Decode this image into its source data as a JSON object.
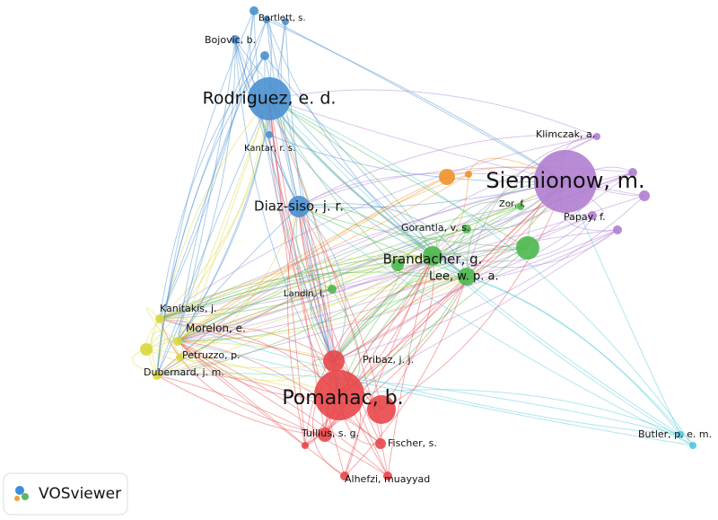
{
  "nodes": [
    {
      "label": "Bartlett, s."
    },
    {
      "label": "Bojovic, b."
    },
    {
      "label": "Rodriguez, e. d."
    },
    {
      "label": "Kantar, r. s."
    },
    {
      "label": "Diaz-siso, j. r."
    },
    {
      "label": "Siemionow, m."
    },
    {
      "label": "Klimczak, a."
    },
    {
      "label": "Zor, f."
    },
    {
      "label": "Papay, f."
    },
    {
      "label": "Gorantla, v. s."
    },
    {
      "label": "Brandacher, g."
    },
    {
      "label": "Lee, w. p. a."
    },
    {
      "label": "Landin, l."
    },
    {
      "label": "Kanitakis, j."
    },
    {
      "label": "Morelon, e."
    },
    {
      "label": "Petruzzo, p."
    },
    {
      "label": "Dubernard, j. m."
    },
    {
      "label": "Pribaz, j. j."
    },
    {
      "label": "Pomahac, b."
    },
    {
      "label": "Tullius, s. g."
    },
    {
      "label": "Fischer, s."
    },
    {
      "label": "Alhefzi, muayyad"
    },
    {
      "label": "Butler, p. e. m."
    }
  ],
  "logo": "VOSviewer"
}
